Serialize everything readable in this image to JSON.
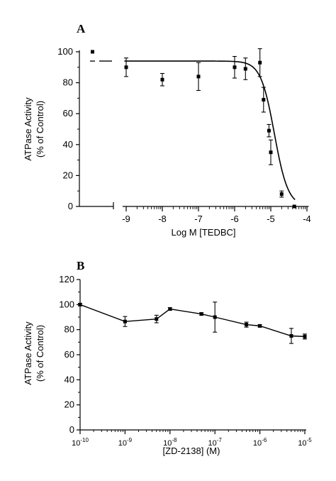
{
  "chart_data": [
    {
      "panel": "A",
      "type": "scatter",
      "ylabel_line1": "ATPase Activity",
      "ylabel_line2": "(% of Control)",
      "xlabel": "Log M [TEDBC]",
      "ylim": [
        0,
        100
      ],
      "xlim": [
        -9.1,
        -4
      ],
      "yticks": [
        "0",
        "20",
        "40",
        "60",
        "80",
        "100"
      ],
      "xticks": [
        "-9",
        "-8",
        "-7",
        "-6",
        "-5",
        "-4"
      ],
      "control": {
        "y": 100,
        "fit_y": 94
      },
      "points": [
        {
          "x": -9.0,
          "y": 90,
          "err": 6
        },
        {
          "x": -8.0,
          "y": 82,
          "err": 4
        },
        {
          "x": -7.0,
          "y": 84,
          "err": 9
        },
        {
          "x": -6.0,
          "y": 90,
          "err": 7
        },
        {
          "x": -5.7,
          "y": 89,
          "err": 7
        },
        {
          "x": -5.3,
          "y": 93,
          "err": 9
        },
        {
          "x": -5.2,
          "y": 69,
          "err": 8
        },
        {
          "x": -5.05,
          "y": 49,
          "err": 4
        },
        {
          "x": -5.0,
          "y": 35,
          "err": 8
        },
        {
          "x": -4.7,
          "y": 8,
          "err": 2
        },
        {
          "x": -4.35,
          "y": 0,
          "err": 0
        }
      ],
      "fit": {
        "top": 94,
        "bottom": 0,
        "logEC50": -4.9,
        "hill": 2.3
      }
    },
    {
      "panel": "B",
      "type": "line",
      "ylabel_line1": "ATPase Activity",
      "ylabel_line2": "(% of Control)",
      "xlabel": "[ZD-2138] (M)",
      "ylim": [
        0,
        120
      ],
      "xlim": [
        -10,
        -5
      ],
      "yticks": [
        "0",
        "20",
        "40",
        "60",
        "80",
        "100",
        "120"
      ],
      "xtick_base": "10",
      "xticks": [
        {
          "x": -10,
          "exp": "-10"
        },
        {
          "x": -9,
          "exp": "-9"
        },
        {
          "x": -8,
          "exp": "-8"
        },
        {
          "x": -7,
          "exp": "-7"
        },
        {
          "x": -6,
          "exp": "-6"
        },
        {
          "x": -5,
          "exp": "-5"
        }
      ],
      "points": [
        {
          "x": -10,
          "y": 100,
          "err": 1
        },
        {
          "x": -9.0,
          "y": 86.5,
          "err": 4
        },
        {
          "x": -8.3,
          "y": 88.5,
          "err": 3
        },
        {
          "x": -8.0,
          "y": 96.5,
          "err": 1
        },
        {
          "x": -7.3,
          "y": 92.5,
          "err": 1
        },
        {
          "x": -7.0,
          "y": 90,
          "err": 12
        },
        {
          "x": -6.3,
          "y": 84,
          "err": 2
        },
        {
          "x": -6.0,
          "y": 83,
          "err": 1
        },
        {
          "x": -5.3,
          "y": 75,
          "err": 6
        },
        {
          "x": -5.0,
          "y": 74.5,
          "err": 2
        }
      ]
    }
  ]
}
